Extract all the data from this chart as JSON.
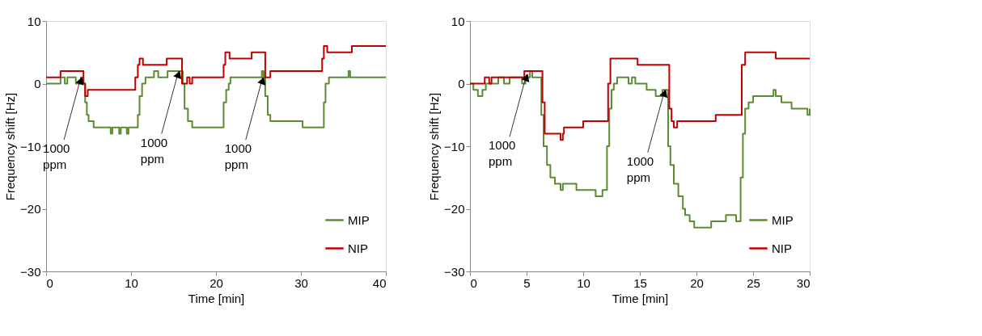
{
  "chart_data": [
    {
      "type": "step",
      "xlabel": "Time [min]",
      "ylabel": "Frequency shift [Hz]",
      "xlim": [
        0,
        40
      ],
      "ylim": [
        -30,
        10
      ],
      "xticks": [
        0,
        10,
        20,
        30,
        40
      ],
      "yticks": [
        -30,
        -20,
        -10,
        0,
        10
      ],
      "grid": false,
      "legend": "bottom right",
      "line_style": "solid",
      "marker": "none",
      "series": [
        {
          "name": "MIP",
          "color": "#5b8c32",
          "x": [
            0,
            1.7,
            2.2,
            2.5,
            3.5,
            4.1,
            4.4,
            4.6,
            4.8,
            5.0,
            5.6,
            7.6,
            7.8,
            8.6,
            8.8,
            9.5,
            9.7,
            10.8,
            11.0,
            11.3,
            11.7,
            12.7,
            13.2,
            14.3,
            16.1,
            16.3,
            16.7,
            17.2,
            20.9,
            21.2,
            21.5,
            21.7,
            25.4,
            25.6,
            25.8,
            26.1,
            26.4,
            30.2,
            32.7,
            32.9,
            33.3,
            35.6,
            35.8,
            40
          ],
          "values": [
            0,
            1,
            0,
            1,
            0,
            1,
            0,
            -3,
            -5,
            -6,
            -7,
            -8,
            -7,
            -8,
            -7,
            -8,
            -7,
            -5,
            -2,
            0,
            1,
            2,
            1,
            2,
            0,
            -4,
            -6,
            -7,
            -3,
            -1,
            0,
            1,
            2,
            1,
            -2,
            -5,
            -6,
            -7,
            -3,
            0,
            1,
            2,
            1,
            1
          ]
        },
        {
          "name": "NIP",
          "color": "#c00000",
          "x": [
            0,
            1.7,
            4.4,
            4.6,
            4.9,
            10.5,
            10.8,
            11.0,
            11.4,
            14.2,
            16.0,
            16.6,
            16.9,
            17.2,
            20.9,
            21.1,
            21.6,
            24.2,
            25.8,
            26.4,
            32.5,
            32.7,
            33.1,
            36.0,
            40
          ],
          "values": [
            1,
            2,
            0,
            -2,
            -1,
            1,
            3,
            4,
            3,
            4,
            0,
            1,
            0,
            1,
            3,
            5,
            4,
            5,
            1,
            2,
            4,
            6,
            5,
            6,
            6
          ]
        }
      ],
      "annotations": [
        {
          "text": "1000 ppm",
          "x": 4.1,
          "y": 1
        },
        {
          "text": "1000 ppm",
          "x": 15.6,
          "y": 2
        },
        {
          "text": "1000 ppm",
          "x": 25.5,
          "y": 1
        }
      ]
    },
    {
      "type": "step",
      "xlabel": "Time [min]",
      "ylabel": "Frequency shift [Hz]",
      "xlim": [
        0,
        30
      ],
      "ylim": [
        -30,
        10
      ],
      "xticks": [
        0,
        5,
        10,
        15,
        20,
        25,
        30
      ],
      "yticks": [
        -30,
        -20,
        -10,
        0,
        10
      ],
      "grid": false,
      "legend": "bottom right",
      "line_style": "solid",
      "marker": "none",
      "series": [
        {
          "name": "MIP",
          "color": "#5b8c32",
          "x": [
            0,
            0.3,
            0.7,
            1.1,
            1.4,
            2.5,
            3.0,
            3.5,
            4.6,
            4.9,
            5.3,
            5.5,
            6.3,
            6.5,
            6.8,
            7.1,
            7.5,
            8.0,
            8.2,
            9.4,
            11.1,
            11.7,
            12.1,
            12.3,
            12.5,
            12.7,
            13.0,
            14.0,
            14.3,
            14.6,
            15.6,
            16.4,
            17.0,
            17.5,
            17.7,
            18.0,
            18.4,
            18.8,
            19.0,
            19.4,
            19.8,
            21.3,
            22.6,
            23.5,
            23.9,
            24.1,
            24.3,
            24.6,
            25.0,
            26.8,
            27.0,
            27.5,
            28.4,
            29.8,
            30
          ],
          "values": [
            0,
            -1,
            -2,
            -1,
            0,
            1,
            0,
            1,
            0,
            1,
            2,
            1,
            -5,
            -10,
            -13,
            -15,
            -16,
            -17,
            -16,
            -17,
            -18,
            -17,
            -10,
            -4,
            -1,
            0,
            1,
            0,
            1,
            0,
            -1,
            -2,
            -1,
            -10,
            -13,
            -16,
            -18,
            -20,
            -21,
            -22,
            -23,
            -22,
            -21,
            -22,
            -15,
            -8,
            -4,
            -3,
            -2,
            -1,
            -2,
            -3,
            -4,
            -5,
            -4
          ]
        },
        {
          "name": "NIP",
          "color": "#c00000",
          "x": [
            0,
            1.3,
            1.7,
            1.9,
            4.8,
            6.4,
            6.6,
            8.0,
            8.2,
            8.3,
            10.0,
            12.2,
            12.4,
            14.8,
            17.6,
            17.8,
            18.0,
            18.3,
            21.7,
            23.8,
            24.0,
            24.3,
            27.0,
            30
          ],
          "values": [
            0,
            1,
            0,
            1,
            2,
            -3,
            -8,
            -9,
            -8,
            -7,
            -6,
            0,
            4,
            3,
            -4,
            -6,
            -7,
            -6,
            -5,
            -5,
            3,
            5,
            4,
            4
          ]
        }
      ],
      "annotations": [
        {
          "text": "1000 ppm",
          "x": 5.0,
          "y": 1.5
        },
        {
          "text": "1000 ppm",
          "x": 17.2,
          "y": -1
        }
      ]
    }
  ]
}
